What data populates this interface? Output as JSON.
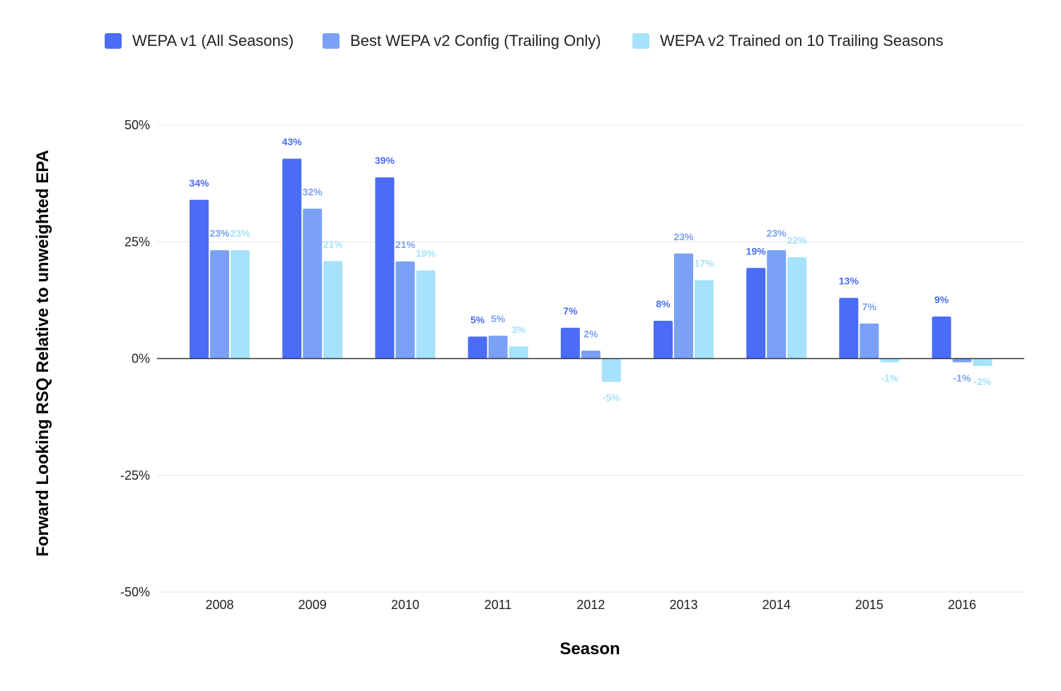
{
  "chart_data": {
    "type": "bar",
    "title": "",
    "xlabel": "Season",
    "ylabel": "Forward Looking RSQ Relative to unweighted EPA",
    "ylim": [
      -50,
      50
    ],
    "yticks": [
      50,
      25,
      0,
      -25,
      -50
    ],
    "ytick_labels": [
      "50%",
      "25%",
      "0%",
      "-25%",
      "-50%"
    ],
    "grid": true,
    "legend_position": "top",
    "categories": [
      "2008",
      "2009",
      "2010",
      "2011",
      "2012",
      "2013",
      "2014",
      "2015",
      "2016"
    ],
    "series": [
      {
        "name": "WEPA v1 (All Seasons)",
        "color": "#4a6cf7",
        "values": [
          34,
          43,
          39,
          5,
          7,
          8,
          19,
          13,
          9
        ],
        "labels": [
          "34%",
          "43%",
          "39%",
          "5%",
          "7%",
          "8%",
          "19%",
          "13%",
          "9%"
        ],
        "plot_values": [
          34,
          42.8,
          38.8,
          4.7,
          6.6,
          8.1,
          19.4,
          13,
          9
        ]
      },
      {
        "name": "Best WEPA v2 Config (Trailing Only)",
        "color": "#7aa1f5",
        "values": [
          23,
          32,
          21,
          5,
          2,
          23,
          23,
          7,
          -1
        ],
        "labels": [
          "23%",
          "32%",
          "21%",
          "5%",
          "2%",
          "23%",
          "23%",
          "7%",
          "-1%"
        ],
        "plot_values": [
          23.2,
          32.1,
          20.8,
          4.9,
          1.7,
          22.5,
          23.2,
          7.5,
          -0.8
        ]
      },
      {
        "name": "WEPA v2 Trained on 10 Trailing Seasons",
        "color": "#a6e2fb",
        "values": [
          23,
          21,
          19,
          3,
          -5,
          17,
          22,
          -1,
          -2
        ],
        "labels": [
          "23%",
          "21%",
          "19%",
          "3%",
          "-5%",
          "17%",
          "22%",
          "-1%",
          "-2%"
        ],
        "plot_values": [
          23.2,
          20.9,
          18.9,
          2.6,
          -5,
          16.8,
          21.7,
          -0.8,
          -1.6
        ]
      }
    ]
  }
}
